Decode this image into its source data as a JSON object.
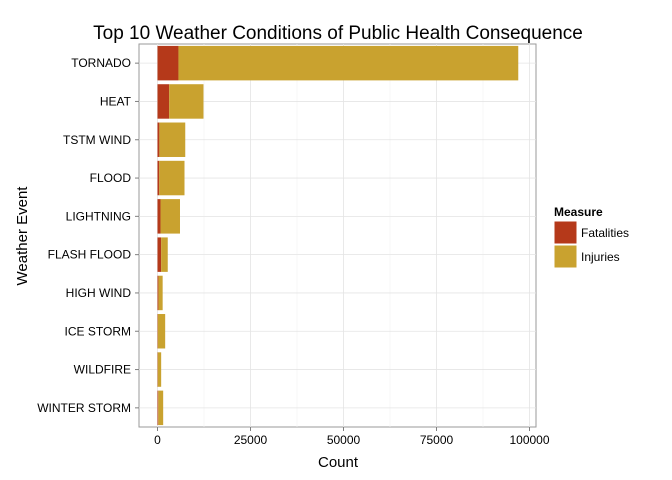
{
  "chart_data": {
    "type": "bar",
    "orientation": "horizontal",
    "stacked": true,
    "title": "Top 10 Weather Conditions of Public Health Consequence",
    "xlabel": "Count",
    "ylabel": "Weather Event",
    "xlim": [
      0,
      100000
    ],
    "xticks": [
      0,
      25000,
      50000,
      75000,
      100000
    ],
    "xtick_labels": [
      "0",
      "25000",
      "50000",
      "75000",
      "100000"
    ],
    "grid": true,
    "legend_position": "right",
    "legend_title": "Measure",
    "categories": [
      "TORNADO",
      "HEAT",
      "TSTM WIND",
      "FLOOD",
      "LIGHTNING",
      "FLASH FLOOD",
      "HIGH WIND",
      "ICE STORM",
      "WILDFIRE",
      "WINTER STORM"
    ],
    "series": [
      {
        "name": "Fatalities",
        "color": "#b5391a",
        "values": [
          5633,
          3138,
          504,
          470,
          816,
          978,
          248,
          89,
          75,
          206
        ]
      },
      {
        "name": "Injuries",
        "color": "#c9a22f",
        "values": [
          91346,
          9224,
          6957,
          6789,
          5230,
          1777,
          1137,
          1975,
          911,
          1321
        ]
      }
    ]
  }
}
